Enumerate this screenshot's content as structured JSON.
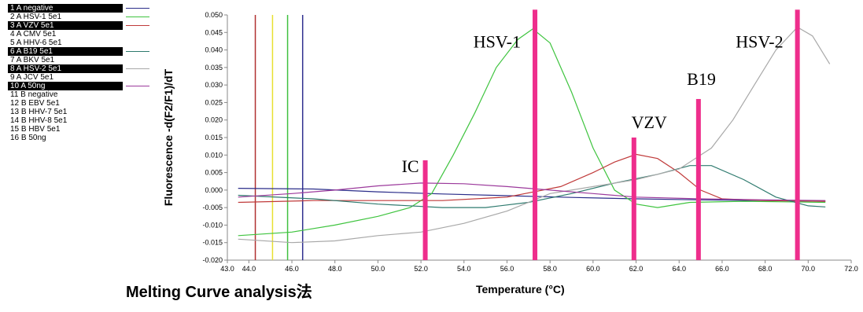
{
  "legend": [
    {
      "label": "1 A negative",
      "highlight": true,
      "color": "#2b2d8a"
    },
    {
      "label": "2 A HSV-1 5e1",
      "highlight": false,
      "color": "#3fc43f"
    },
    {
      "label": "3 A VZV 5e1",
      "highlight": true,
      "color": "#c03a3a"
    },
    {
      "label": "4 A CMV 5e1",
      "highlight": false,
      "color": null
    },
    {
      "label": "5 A HHV-6 5e1",
      "highlight": false,
      "color": null
    },
    {
      "label": "6 A B19 5e1",
      "highlight": true,
      "color": "#2e7a6e"
    },
    {
      "label": "7 A BKV 5e1",
      "highlight": false,
      "color": null
    },
    {
      "label": "8 A HSV-2 5e1",
      "highlight": true,
      "color": "#a8a8a8"
    },
    {
      "label": "9 A JCV 5e1",
      "highlight": false,
      "color": null
    },
    {
      "label": "10 A 50ng",
      "highlight": true,
      "color": "#9c3a9c"
    },
    {
      "label": "11 B negative",
      "highlight": false,
      "color": null
    },
    {
      "label": "12 B EBV 5e1",
      "highlight": false,
      "color": null
    },
    {
      "label": "13 B HHV-7 5e1",
      "highlight": false,
      "color": null
    },
    {
      "label": "14 B HHV-8 5e1",
      "highlight": false,
      "color": null
    },
    {
      "label": "15 B HBV 5e1",
      "highlight": false,
      "color": null
    },
    {
      "label": "16 B 50ng",
      "highlight": false,
      "color": null
    }
  ],
  "caption": "Melting Curve analysis法",
  "chart_data": {
    "type": "line",
    "xlabel": "Temperature (°C)",
    "ylabel": "Fluorescence -d(F2/F1)/dT",
    "xlim": [
      43.0,
      72.0
    ],
    "ylim": [
      -0.02,
      0.05
    ],
    "xticks": [
      "43.0",
      "44.0",
      "46.0",
      "48.0",
      "50.0",
      "52.0",
      "54.0",
      "56.0",
      "58.0",
      "60.0",
      "62.0",
      "64.0",
      "66.0",
      "68.0",
      "70.0",
      "72.0"
    ],
    "yticks": [
      "0.050",
      "0.045",
      "0.040",
      "0.035",
      "0.030",
      "0.025",
      "0.020",
      "0.015",
      "0.010",
      "0.005",
      "0.000",
      "-0.005",
      "-0.010",
      "-0.015",
      "-0.020"
    ],
    "threshold_lines": [
      {
        "x": 44.3,
        "color": "#b03030"
      },
      {
        "x": 45.1,
        "color": "#e8e030"
      },
      {
        "x": 45.8,
        "color": "#40c040"
      },
      {
        "x": 46.5,
        "color": "#303090"
      }
    ],
    "series": [
      {
        "color": "#2b2d8a",
        "points": [
          [
            43.5,
            0.0005
          ],
          [
            47,
            0.0003
          ],
          [
            50,
            -0.0005
          ],
          [
            53,
            -0.0011
          ],
          [
            56,
            -0.0016
          ],
          [
            59,
            -0.0021
          ],
          [
            62,
            -0.0025
          ],
          [
            65,
            -0.0028
          ],
          [
            68,
            -0.003
          ],
          [
            70.8,
            -0.0032
          ]
        ]
      },
      {
        "color": "#3fc43f",
        "points": [
          [
            43.5,
            -0.013
          ],
          [
            46,
            -0.012
          ],
          [
            48,
            -0.01
          ],
          [
            50,
            -0.0075
          ],
          [
            51.5,
            -0.005
          ],
          [
            52.5,
            -0.001
          ],
          [
            53.5,
            0.01
          ],
          [
            54.5,
            0.022
          ],
          [
            55.5,
            0.035
          ],
          [
            56.5,
            0.043
          ],
          [
            57.2,
            0.046
          ],
          [
            58,
            0.042
          ],
          [
            59,
            0.028
          ],
          [
            60,
            0.012
          ],
          [
            61,
            0.0
          ],
          [
            62,
            -0.004
          ],
          [
            63,
            -0.005
          ],
          [
            64.5,
            -0.0035
          ],
          [
            67,
            -0.0032
          ],
          [
            70.8,
            -0.0035
          ]
        ]
      },
      {
        "color": "#c03a3a",
        "points": [
          [
            43.5,
            -0.0035
          ],
          [
            47,
            -0.003
          ],
          [
            50,
            -0.003
          ],
          [
            53,
            -0.003
          ],
          [
            56,
            -0.002
          ],
          [
            58.5,
            0.001
          ],
          [
            60,
            0.005
          ],
          [
            61,
            0.008
          ],
          [
            62,
            0.0102
          ],
          [
            63,
            0.009
          ],
          [
            64,
            0.005
          ],
          [
            65,
            0.0
          ],
          [
            66,
            -0.0025
          ],
          [
            68,
            -0.003
          ],
          [
            70.8,
            -0.0032
          ]
        ]
      },
      {
        "color": "#2e7a6e",
        "points": [
          [
            43.5,
            -0.0015
          ],
          [
            47,
            -0.0025
          ],
          [
            50,
            -0.004
          ],
          [
            53,
            -0.005
          ],
          [
            55,
            -0.005
          ],
          [
            57,
            -0.0035
          ],
          [
            59,
            -0.001
          ],
          [
            61,
            0.002
          ],
          [
            63,
            0.0045
          ],
          [
            64.5,
            0.007
          ],
          [
            65.5,
            0.007
          ],
          [
            67,
            0.003
          ],
          [
            68.5,
            -0.002
          ],
          [
            70,
            -0.0045
          ],
          [
            70.8,
            -0.0048
          ]
        ]
      },
      {
        "color": "#a8a8a8",
        "points": [
          [
            43.5,
            -0.014
          ],
          [
            46,
            -0.015
          ],
          [
            48,
            -0.0145
          ],
          [
            50,
            -0.013
          ],
          [
            52,
            -0.012
          ],
          [
            54,
            -0.0095
          ],
          [
            56,
            -0.006
          ],
          [
            58,
            -0.001
          ],
          [
            60,
            0.001
          ],
          [
            62,
            0.003
          ],
          [
            64,
            0.006
          ],
          [
            65.5,
            0.012
          ],
          [
            66.5,
            0.02
          ],
          [
            67.5,
            0.03
          ],
          [
            68.5,
            0.04
          ],
          [
            69.5,
            0.0465
          ],
          [
            70.2,
            0.044
          ],
          [
            71,
            0.036
          ]
        ]
      },
      {
        "color": "#9c3a9c",
        "points": [
          [
            43.5,
            -0.002
          ],
          [
            46,
            -0.001
          ],
          [
            48,
            0.0
          ],
          [
            50,
            0.0012
          ],
          [
            52,
            0.002
          ],
          [
            54,
            0.0018
          ],
          [
            56,
            0.001
          ],
          [
            58,
            0.0
          ],
          [
            60,
            -0.001
          ],
          [
            62,
            -0.002
          ],
          [
            65,
            -0.0025
          ],
          [
            68,
            -0.0028
          ],
          [
            70.8,
            -0.003
          ]
        ]
      }
    ],
    "peaks": [
      {
        "label": "IC",
        "x": 52.2,
        "top": 0.0085
      },
      {
        "label": "HSV-1",
        "x": 57.3,
        "top": 0.0515
      },
      {
        "label": "VZV",
        "x": 61.9,
        "top": 0.015
      },
      {
        "label": "B19",
        "x": 64.9,
        "top": 0.026
      },
      {
        "label": "HSV-2",
        "x": 69.5,
        "top": 0.0515
      }
    ]
  }
}
